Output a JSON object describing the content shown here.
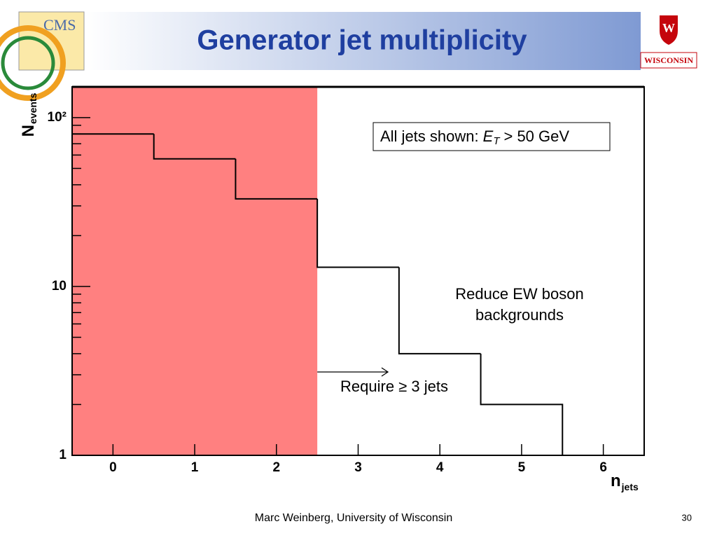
{
  "slide": {
    "title": "Generator jet multiplicity",
    "footer": "Marc Weinberg, University of Wisconsin",
    "page_number": "30",
    "logo_left": "CMS",
    "logo_right": "WISCONSIN"
  },
  "chart_data": {
    "type": "histogram",
    "log_y": true,
    "bins": [
      -0.5,
      0.5,
      1.5,
      2.5,
      3.5,
      4.5,
      5.5
    ],
    "values": [
      80,
      57,
      33,
      13,
      4,
      2
    ],
    "color": "#000000",
    "xlim": [
      -0.5,
      6.5
    ],
    "ylim": [
      1,
      152
    ],
    "xticks": [
      0,
      1,
      2,
      3,
      4,
      5,
      6
    ],
    "yticks": [
      1,
      10,
      {
        "value": 100,
        "label": "10²"
      }
    ],
    "minor_yticks": [
      2,
      3,
      4,
      5,
      6,
      7,
      8,
      9,
      20,
      30,
      40,
      50,
      60,
      70,
      80,
      90
    ],
    "y_label": {
      "main": "N",
      "sub": "events"
    },
    "x_label": {
      "main": "n",
      "sub": "jets"
    },
    "shade": {
      "x": [
        -0.5,
        2.5
      ],
      "color": "#ff8080"
    },
    "box_label": {
      "prefix": "All jets shown:",
      "symbol": "E",
      "subscript": "T",
      "suffix": "> 50 GeV"
    },
    "annotations": [
      {
        "lines": [
          "Reduce EW boson",
          "backgrounds"
        ],
        "color": "#000000"
      },
      {
        "lines": [
          "Require ≥ 3 jets"
        ],
        "color": "#e00000"
      }
    ]
  }
}
